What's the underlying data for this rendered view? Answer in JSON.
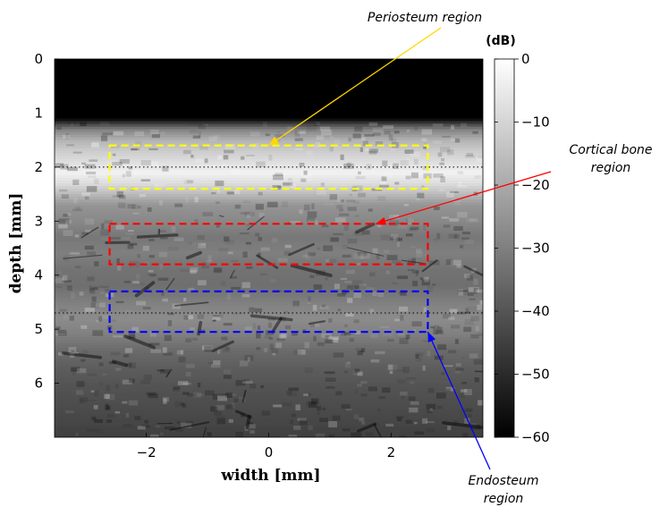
{
  "chart_data": {
    "type": "heatmap",
    "description_image": "B-mode ultrasound image of bone in dB",
    "xlabel": "width [mm]",
    "ylabel": "depth [mm]",
    "xlim": [
      -3.5,
      3.5
    ],
    "ylim": [
      0,
      7
    ],
    "y_inverted": true,
    "xticks": [
      -2,
      0,
      2
    ],
    "yticks": [
      0,
      1,
      2,
      3,
      4,
      5,
      6
    ],
    "colorbar": {
      "unit": "(dB)",
      "range": [
        -60,
        0
      ],
      "ticks": [
        0,
        -10,
        -20,
        -30,
        -40,
        -50,
        -60
      ],
      "colormap": "gray"
    },
    "dotted_lines_depth": [
      2.0,
      4.7
    ],
    "regions": [
      {
        "name": "Periosteum region",
        "color": "#ffff00",
        "x0": -2.6,
        "x1": 2.6,
        "y0": 1.6,
        "y1": 2.4
      },
      {
        "name": "Cortical bone region",
        "color": "#ff0000",
        "x0": -2.6,
        "x1": 2.6,
        "y0": 3.05,
        "y1": 3.8
      },
      {
        "name": "Endosteum region",
        "color": "#0000ff",
        "x0": -2.6,
        "x1": 2.6,
        "y0": 4.3,
        "y1": 5.05
      }
    ],
    "annotations": [
      {
        "label_lines": [
          "Periosteum region"
        ],
        "color": "#ffd700",
        "target_x": 0.0,
        "target_y": 1.6
      },
      {
        "label_lines": [
          "Cortical bone",
          "region"
        ],
        "color": "#ff0000",
        "target_x": 1.75,
        "target_y": 3.05
      },
      {
        "label_lines": [
          "Endosteum",
          "region"
        ],
        "color": "#0000ff",
        "target_x": 2.6,
        "target_y": 5.05
      }
    ],
    "intensity_profile": {
      "depth": [
        0.0,
        1.1,
        1.3,
        1.5,
        1.7,
        1.9,
        2.1,
        2.3,
        2.5,
        2.7,
        3.0,
        3.3,
        3.6,
        3.9,
        4.2,
        4.5,
        4.8,
        5.1,
        5.4,
        5.7,
        6.0,
        6.4,
        6.8,
        7.0
      ],
      "level_db": [
        -60,
        -60,
        -30,
        -18,
        -12,
        -8,
        -3,
        -8,
        -16,
        -25,
        -28,
        -32,
        -30,
        -33,
        -34,
        -30,
        -27,
        -30,
        -35,
        -38,
        -40,
        -42,
        -44,
        -45
      ]
    }
  }
}
